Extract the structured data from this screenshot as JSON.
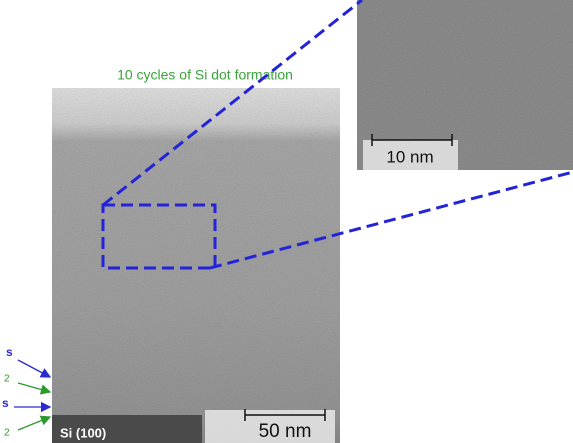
{
  "figure": {
    "title": "10 cycles of Si dot formation",
    "inset_scale": "10 nm",
    "main_scale": "50 nm",
    "substrate": "Si (100)",
    "side_labels": [
      "s",
      "2",
      "s",
      "2"
    ]
  }
}
